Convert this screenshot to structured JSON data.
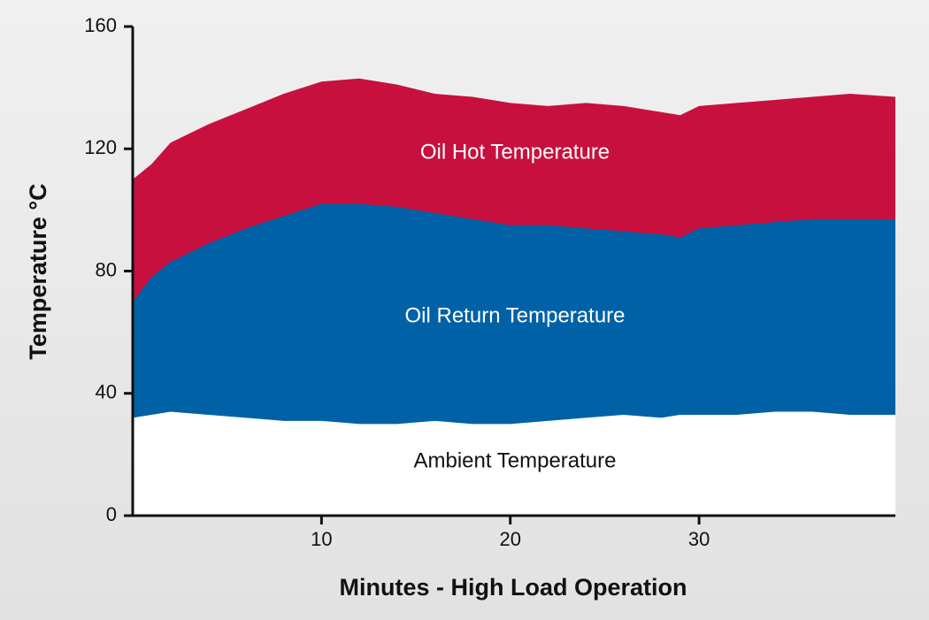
{
  "chart_data": {
    "type": "area",
    "x_label": "Minutes - High Load Operation",
    "y_label": "Temperature °C",
    "x": [
      0,
      1,
      2,
      4,
      6,
      8,
      10,
      12,
      14,
      16,
      18,
      20,
      22,
      24,
      26,
      28,
      29,
      30,
      32,
      34,
      36,
      38,
      40.4
    ],
    "series": [
      {
        "name": "Oil Hot Temperature",
        "color": "#c8103f",
        "values": [
          110,
          115,
          122,
          128,
          133,
          138,
          142,
          143,
          141,
          138,
          137,
          135,
          134,
          135,
          134,
          132,
          131,
          134,
          135,
          136,
          137,
          138,
          137
        ]
      },
      {
        "name": "Oil Return Temperature",
        "color": "#0061a6",
        "values": [
          70,
          78,
          83,
          89,
          94,
          98,
          102,
          102,
          101,
          99,
          97,
          95,
          95,
          94,
          93,
          92,
          91,
          94,
          95,
          96,
          97,
          97,
          97
        ]
      },
      {
        "name": "Ambient Temperature",
        "color": "#ffffff",
        "values": [
          32,
          33,
          34,
          33,
          32,
          31,
          31,
          30,
          30,
          31,
          30,
          30,
          31,
          32,
          33,
          32,
          33,
          33,
          33,
          34,
          34,
          33,
          33
        ]
      }
    ],
    "xlim": [
      0,
      40.4
    ],
    "xticks": [
      10,
      20,
      30
    ],
    "ylim": [
      0,
      160
    ],
    "yticks": [
      0,
      40,
      80,
      120,
      160
    ]
  }
}
